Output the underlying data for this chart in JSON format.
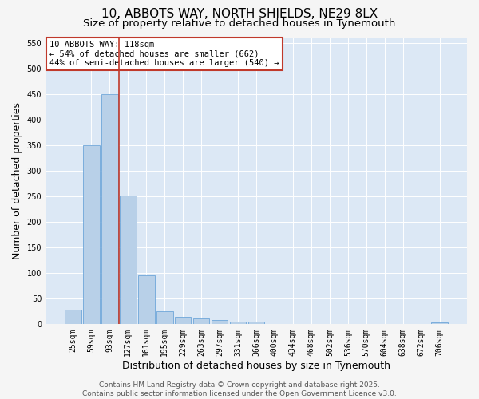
{
  "title": "10, ABBOTS WAY, NORTH SHIELDS, NE29 8LX",
  "subtitle": "Size of property relative to detached houses in Tynemouth",
  "xlabel": "Distribution of detached houses by size in Tynemouth",
  "ylabel": "Number of detached properties",
  "bar_labels": [
    "25sqm",
    "59sqm",
    "93sqm",
    "127sqm",
    "161sqm",
    "195sqm",
    "229sqm",
    "263sqm",
    "297sqm",
    "331sqm",
    "366sqm",
    "400sqm",
    "434sqm",
    "468sqm",
    "502sqm",
    "536sqm",
    "570sqm",
    "604sqm",
    "638sqm",
    "672sqm",
    "706sqm"
  ],
  "bar_values": [
    28,
    350,
    450,
    252,
    95,
    25,
    15,
    12,
    8,
    5,
    5,
    1,
    0,
    0,
    0,
    0,
    0,
    0,
    0,
    0,
    3
  ],
  "bar_color": "#b8d0e8",
  "bar_edge_color": "#5b9bd5",
  "ylim": [
    0,
    560
  ],
  "yticks": [
    0,
    50,
    100,
    150,
    200,
    250,
    300,
    350,
    400,
    450,
    500,
    550
  ],
  "vline_color": "#c0392b",
  "vline_x": 2.5,
  "annotation_text": "10 ABBOTS WAY: 118sqm\n← 54% of detached houses are smaller (662)\n44% of semi-detached houses are larger (540) →",
  "annotation_box_color": "#ffffff",
  "annotation_box_edge": "#c0392b",
  "footer": "Contains HM Land Registry data © Crown copyright and database right 2025.\nContains public sector information licensed under the Open Government Licence v3.0.",
  "fig_bg_color": "#f5f5f5",
  "plot_bg_color": "#dce8f5",
  "grid_color": "#ffffff",
  "title_fontsize": 11,
  "subtitle_fontsize": 9.5,
  "tick_fontsize": 7,
  "xlabel_fontsize": 9,
  "ylabel_fontsize": 9,
  "footer_fontsize": 6.5,
  "annotation_fontsize": 7.5
}
